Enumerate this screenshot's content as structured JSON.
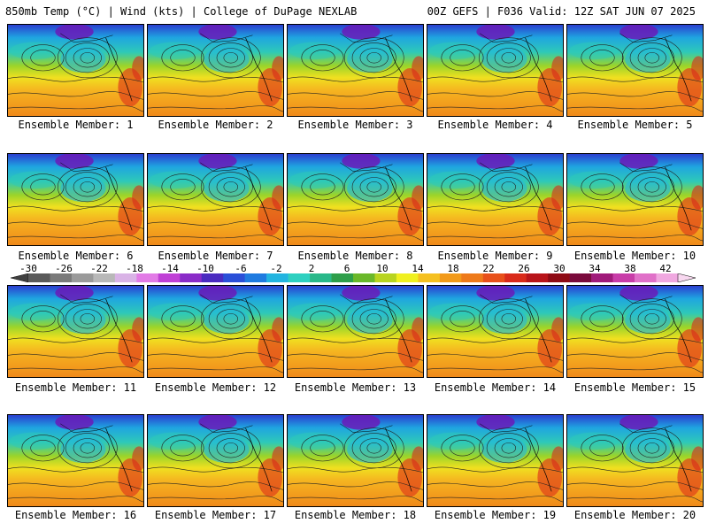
{
  "header": {
    "left_title": "850mb Temp (°C) | Wind (kts) | College of DuPage NEXLAB",
    "right_title": "00Z GEFS | F036 Valid: 12Z SAT JUN 07 2025"
  },
  "members": [
    "Ensemble Member: 1",
    "Ensemble Member: 2",
    "Ensemble Member: 3",
    "Ensemble Member: 4",
    "Ensemble Member: 5",
    "Ensemble Member: 6",
    "Ensemble Member: 7",
    "Ensemble Member: 8",
    "Ensemble Member: 9",
    "Ensemble Member: 10",
    "Ensemble Member: 11",
    "Ensemble Member: 12",
    "Ensemble Member: 13",
    "Ensemble Member: 14",
    "Ensemble Member: 15",
    "Ensemble Member: 16",
    "Ensemble Member: 17",
    "Ensemble Member: 18",
    "Ensemble Member: 19",
    "Ensemble Member: 20"
  ],
  "colorbar": {
    "tick_labels": [
      "-30",
      "-26",
      "-22",
      "-18",
      "-14",
      "-10",
      "-6",
      "-2",
      "2",
      "6",
      "10",
      "14",
      "18",
      "22",
      "26",
      "30",
      "34",
      "38",
      "42"
    ],
    "colors": [
      "#5a5a5a",
      "#7a7a7a",
      "#9a9a9a",
      "#b8b8b8",
      "#d9b3e6",
      "#e27be6",
      "#c040d6",
      "#8a2bc8",
      "#4a2bc0",
      "#2a4fd8",
      "#1f7be0",
      "#22b4e0",
      "#2ed0c0",
      "#29b889",
      "#2e9e4a",
      "#6ab82a",
      "#b8d420",
      "#f0f020",
      "#f5c020",
      "#f29a1a",
      "#ee7a1a",
      "#e8501a",
      "#d92a1a",
      "#b8141a",
      "#8e0a14",
      "#7a0a3c",
      "#a01a7a",
      "#c83ca8",
      "#e070c8",
      "#f0a8e0"
    ]
  }
}
